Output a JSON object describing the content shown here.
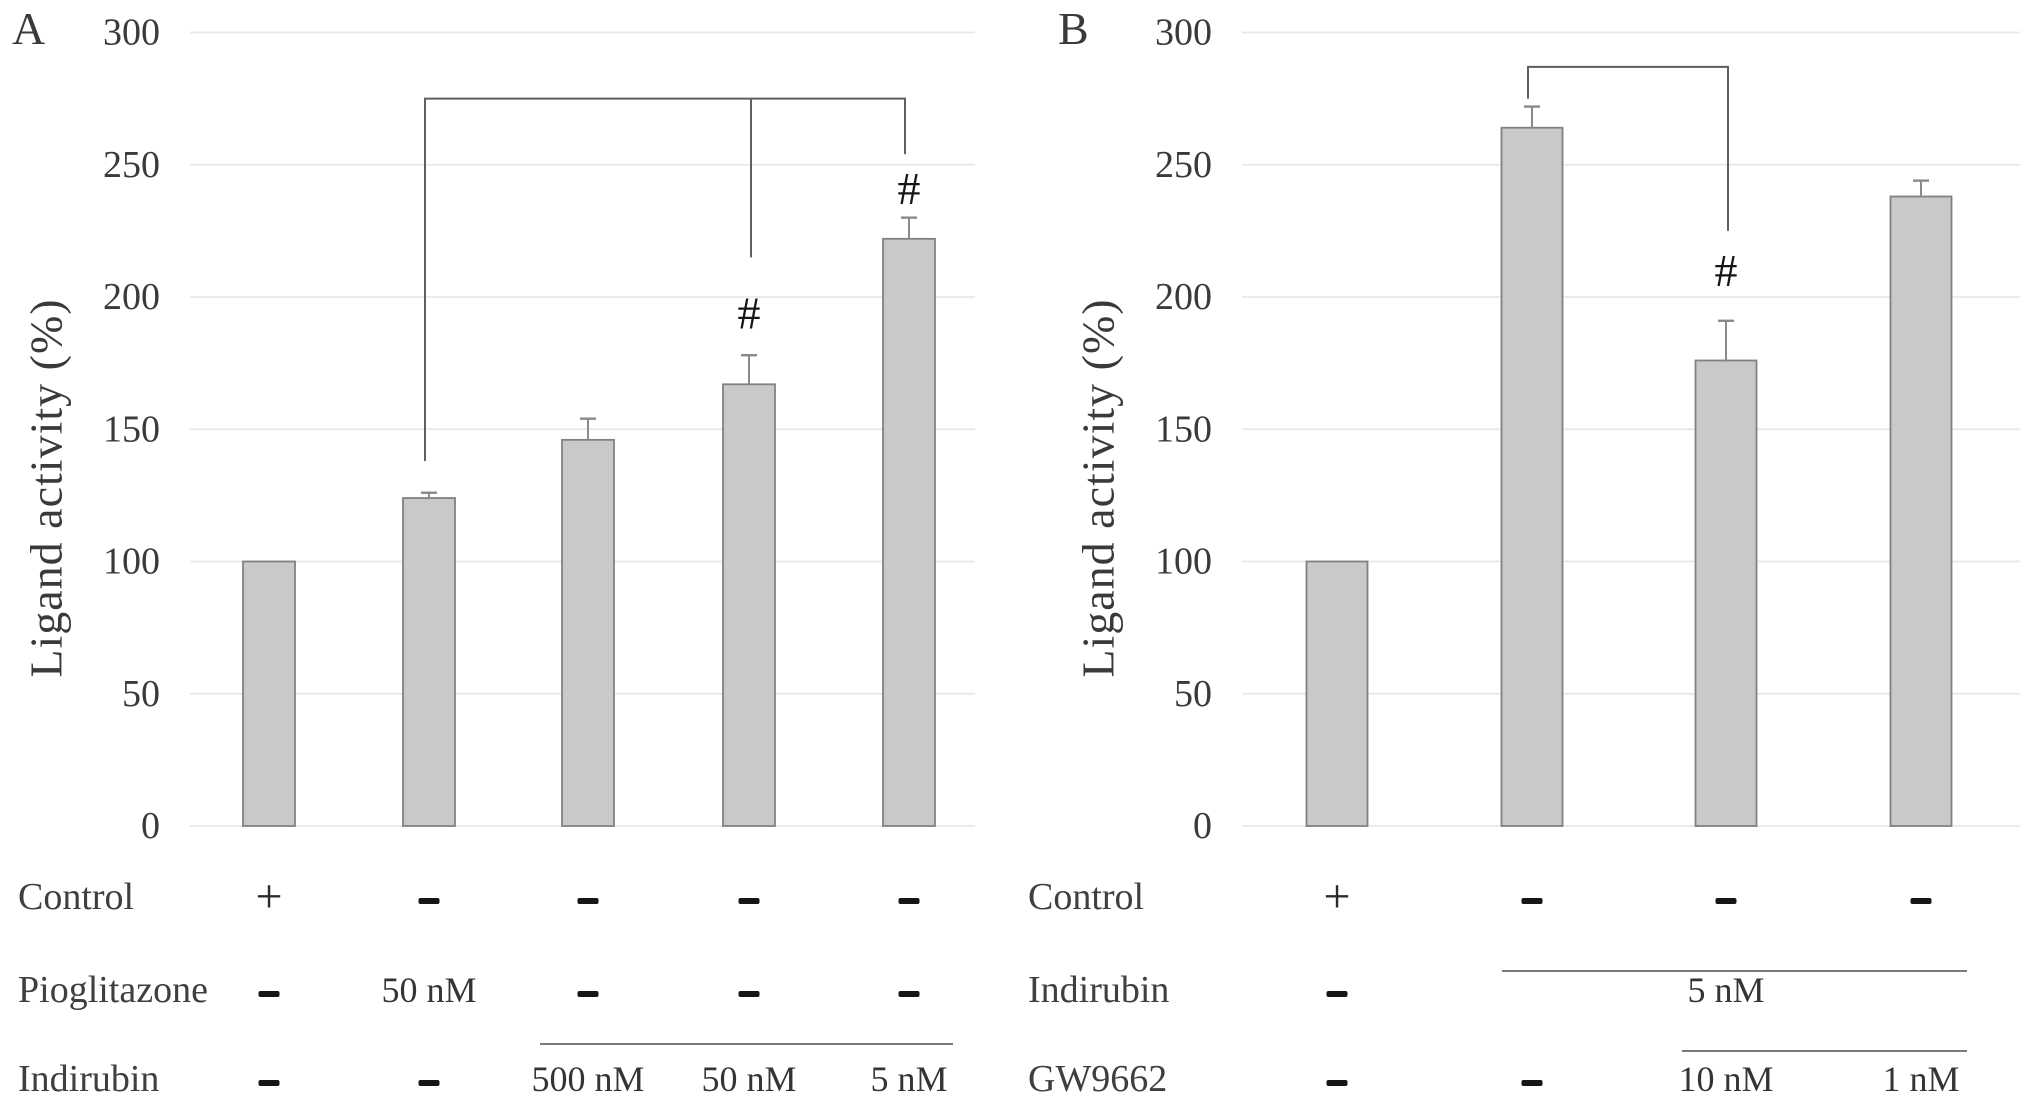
{
  "figure_type": "two-panel scientific bar figure",
  "colors": {
    "background": "#ffffff",
    "bar_fill": "#c9c9c9",
    "bar_border": "#818181",
    "gridline": "#e8e8e8",
    "error_bar": "#8a8a8a",
    "bracket": "#5f5f5f",
    "axis_text": "#3a3a3a",
    "symbol_text": "#161616"
  },
  "chart_data": [
    {
      "panel_label": "A",
      "type": "bar",
      "title": "",
      "ylabel": "Ligand activity (%)",
      "xlabel": "",
      "ylim": [
        0,
        300
      ],
      "yticks": [
        300,
        250,
        200,
        150,
        100,
        50,
        0
      ],
      "grid_on": true,
      "legend": "none",
      "categories": [
        "Control",
        "Pioglitazone 50 nM",
        "Indirubin 500 nM",
        "Indirubin 50 nM",
        "Indirubin 5 nM"
      ],
      "values": [
        100,
        124,
        146,
        167,
        222
      ],
      "errors": [
        0,
        2,
        8,
        11,
        8
      ],
      "significance_marks": [
        {
          "bar_index": 3,
          "symbol": "#",
          "value_y": 194
        },
        {
          "bar_index": 4,
          "symbol": "#",
          "value_y": 241
        }
      ],
      "bracket": {
        "level_value": 275,
        "ends": [
          {
            "bar_index": 1,
            "drop_to_value": 138
          },
          {
            "bar_index": 3,
            "drop_to_value": 215
          },
          {
            "bar_index": 4,
            "drop_to_value": 254
          }
        ]
      },
      "table": {
        "rows": [
          {
            "label": "Control",
            "cells": [
              "+",
              "-",
              "-",
              "-",
              "-"
            ],
            "overline": false
          },
          {
            "label": "Pioglitazone",
            "cells": [
              "-",
              "50 nM",
              "-",
              "-",
              "-"
            ],
            "overline": false
          },
          {
            "label": "Indirubin",
            "cells": [
              "-",
              "-",
              "500 nM",
              "50 nM",
              "5 nM"
            ],
            "overline": true
          }
        ]
      }
    },
    {
      "panel_label": "B",
      "type": "bar",
      "title": "",
      "ylabel": "Ligand activity (%)",
      "xlabel": "",
      "ylim": [
        0,
        300
      ],
      "yticks": [
        300,
        250,
        200,
        150,
        100,
        50,
        0
      ],
      "grid_on": true,
      "legend": "none",
      "categories": [
        "Control",
        "Indirubin 5 nM",
        "Indirubin 5 nM + GW9662 10 nM",
        "Indirubin 5 nM + GW9662 1 nM"
      ],
      "values": [
        100,
        264,
        176,
        238
      ],
      "errors": [
        0,
        8,
        15,
        6
      ],
      "significance_marks": [
        {
          "bar_index": 2,
          "symbol": "#",
          "value_y": 210
        }
      ],
      "bracket": {
        "level_value": 287,
        "ends": [
          {
            "bar_index": 1,
            "drop_to_value": 275
          },
          {
            "bar_index": 2,
            "drop_to_value": 225
          }
        ]
      },
      "table": {
        "rows": [
          {
            "label": "Control",
            "cells": [
              "+",
              "-",
              "-",
              "-"
            ],
            "overline": false
          },
          {
            "label": "Indirubin",
            "cells": [
              "-",
              "",
              "5 nM",
              ""
            ],
            "overline": true,
            "merged_across": [
              1,
              3
            ]
          },
          {
            "label": "GW9662",
            "cells": [
              "-",
              "-",
              "10 nM",
              "1 nM"
            ],
            "overline": true
          }
        ]
      }
    }
  ]
}
